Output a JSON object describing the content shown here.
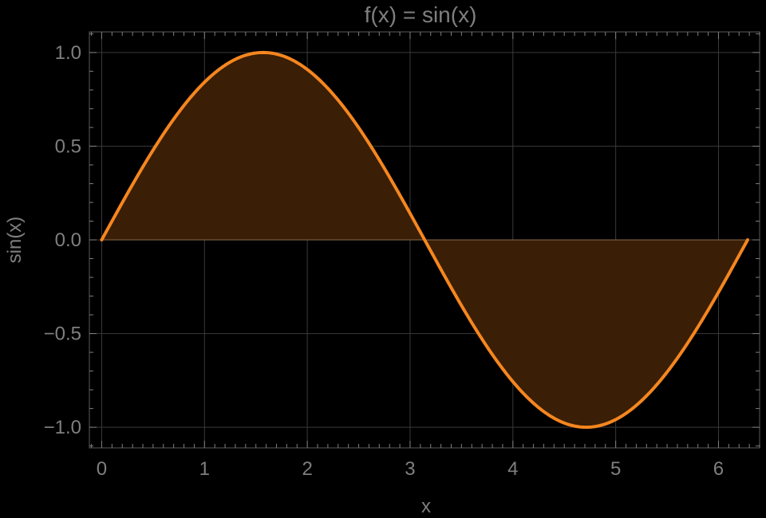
{
  "chart_data": {
    "type": "area",
    "title": "f(x) = sin(x)",
    "xlabel": "x",
    "ylabel": "sin(x)",
    "function": "sin(x)",
    "xlim": [
      -0.12,
      6.4
    ],
    "ylim": [
      -1.11,
      1.11
    ],
    "x_domain": [
      0,
      6.283185
    ],
    "x_ticks": [
      0,
      1,
      2,
      3,
      4,
      5,
      6
    ],
    "x_tick_labels": [
      "0",
      "1",
      "2",
      "3",
      "4",
      "5",
      "6"
    ],
    "y_ticks": [
      -1.0,
      -0.5,
      0.0,
      0.5,
      1.0
    ],
    "y_tick_labels": [
      "−1.0",
      "−0.5",
      "0.0",
      "0.5",
      "1.0"
    ],
    "grid": true,
    "fill_to": 0,
    "series": [
      {
        "x": [
          0,
          0.5,
          1,
          1.5708,
          2,
          2.5,
          3,
          3.1416,
          3.5,
          4,
          4.5,
          4.7124,
          5,
          5.5,
          6,
          6.2832
        ],
        "values": [
          0,
          0.479,
          0.841,
          1.0,
          0.909,
          0.598,
          0.141,
          0.0,
          -0.351,
          -0.757,
          -0.978,
          -1.0,
          -0.959,
          -0.706,
          -0.279,
          0.0
        ],
        "line_color": "#f5861f",
        "fill_color": "#3a1e05"
      }
    ],
    "colors": {
      "background": "#000000",
      "text": "#7f7f7f",
      "grid": "#3a3a3a",
      "frame": "#5a5a5a"
    }
  }
}
